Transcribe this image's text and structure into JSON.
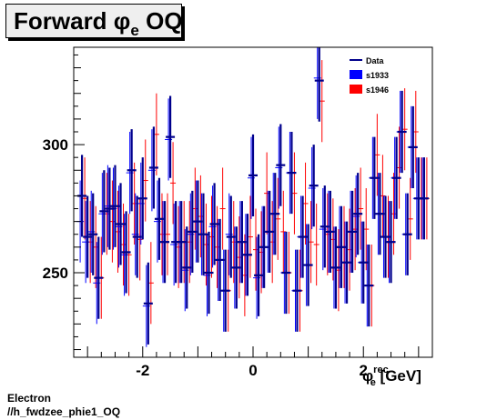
{
  "title": {
    "main": "Forward ",
    "symbol": "φ",
    "subscript": "e",
    "suffix": " OQ"
  },
  "xlabel": {
    "symbol": "φ",
    "superscript": "rec",
    "subscript": "e",
    "unit": " [GeV]"
  },
  "footer": {
    "line1": "Electron",
    "line2": "//h_fwdzee_phie1_OQ"
  },
  "chart_data": {
    "type": "scatter",
    "xlim": [
      -3.25,
      3.25
    ],
    "ylim": [
      217,
      338
    ],
    "xticks": [
      -2,
      0,
      2
    ],
    "xtick_labels": [
      "-2",
      "0",
      "2"
    ],
    "yticks": [
      250,
      300
    ],
    "ytick_labels": [
      "250",
      "300"
    ],
    "legend_position": "top-right",
    "legend": [
      {
        "label": "Data",
        "color": "#00008b"
      },
      {
        "label": "s1933",
        "color": "#0000ff"
      },
      {
        "label": "s1946",
        "color": "#ff0000"
      }
    ],
    "x": [
      -3.1,
      -3.0,
      -2.9,
      -2.8,
      -2.7,
      -2.6,
      -2.5,
      -2.4,
      -2.3,
      -2.2,
      -2.1,
      -2.0,
      -1.9,
      -1.8,
      -1.7,
      -1.6,
      -1.5,
      -1.4,
      -1.3,
      -1.2,
      -1.1,
      -1.0,
      -0.9,
      -0.8,
      -0.7,
      -0.6,
      -0.5,
      -0.4,
      -0.3,
      -0.2,
      -0.1,
      0.0,
      0.1,
      0.2,
      0.3,
      0.4,
      0.5,
      0.6,
      0.7,
      0.8,
      0.9,
      1.0,
      1.1,
      1.2,
      1.3,
      1.4,
      1.5,
      1.6,
      1.7,
      1.8,
      1.9,
      2.0,
      2.1,
      2.2,
      2.3,
      2.4,
      2.5,
      2.6,
      2.7,
      2.8,
      2.9,
      3.0,
      3.1
    ],
    "series": [
      {
        "name": "Data",
        "err": 16,
        "values": [
          280,
          264,
          265,
          248,
          274,
          275,
          276,
          269,
          258,
          290,
          264,
          279,
          238,
          291,
          271,
          262,
          303,
          262,
          262,
          252,
          266,
          270,
          265,
          250,
          269,
          255,
          243,
          264,
          252,
          262,
          257,
          288,
          249,
          260,
          266,
          273,
          292,
          250,
          289,
          243,
          264,
          253,
          284,
          325,
          268,
          266,
          252,
          260,
          254,
          266,
          273,
          254,
          245,
          287,
          273,
          264,
          262,
          287,
          305,
          265,
          299,
          279,
          279
        ]
      },
      {
        "name": "s1933",
        "err": 16,
        "values": [
          270,
          262,
          266,
          246,
          273,
          276,
          275,
          268,
          257,
          289,
          265,
          277,
          237,
          290,
          270,
          262,
          302,
          261,
          262,
          251,
          265,
          270,
          265,
          249,
          268,
          255,
          243,
          265,
          252,
          262,
          257,
          287,
          248,
          260,
          266,
          273,
          291,
          250,
          289,
          243,
          264,
          253,
          283,
          326,
          267,
          266,
          252,
          260,
          254,
          266,
          272,
          254,
          245,
          287,
          273,
          264,
          262,
          287,
          305,
          265,
          299,
          279,
          279
        ]
      },
      {
        "name": "s1946",
        "err": 16,
        "values": [
          279,
          262,
          260,
          248,
          273,
          270,
          266,
          261,
          257,
          277,
          263,
          286,
          246,
          304,
          265,
          265,
          285,
          260,
          262,
          262,
          275,
          272,
          261,
          264,
          260,
          275,
          243,
          262,
          256,
          249,
          264,
          259,
          258,
          281,
          262,
          271,
          266,
          250,
          281,
          243,
          277,
          262,
          261,
          317,
          265,
          263,
          251,
          260,
          259,
          267,
          275,
          267,
          245,
          296,
          280,
          264,
          273,
          291,
          306,
          271,
          305,
          279,
          279
        ]
      }
    ]
  }
}
